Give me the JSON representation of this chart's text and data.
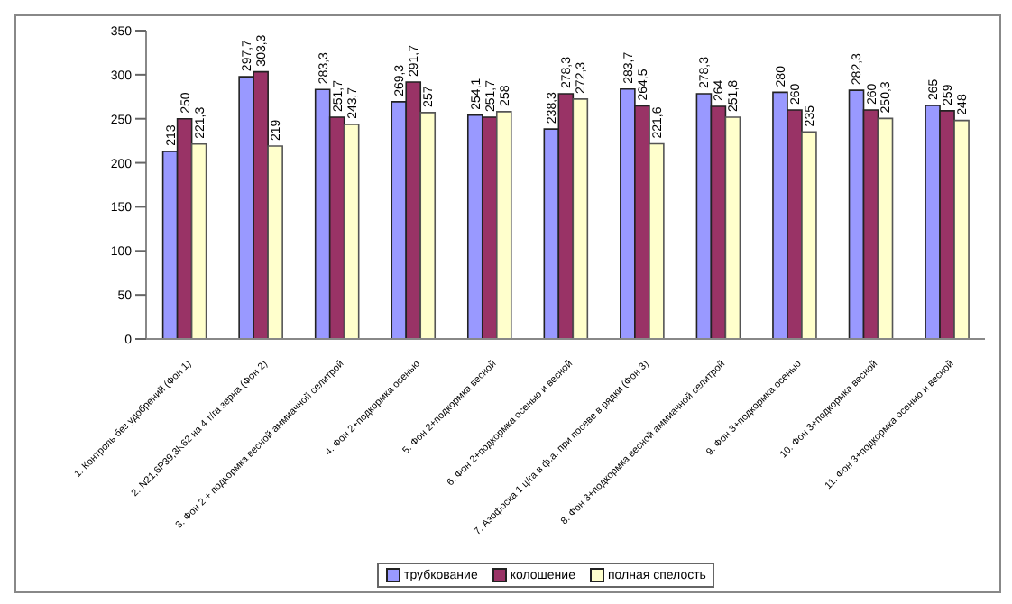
{
  "chart_data": {
    "type": "bar",
    "categories": [
      "1. Контроль без удобрений (Фон 1)",
      "2. N21,6P39,3K62 на 4 т/га зерна (Фон 2)",
      "3. Фон 2 + подкормка весной аммиачной селитрой",
      "4. Фон 2+подкормка осенью",
      "5. Фон 2+подкормка весной",
      "6. Фон 2+подкормка осенью и весной",
      "7. Азофоска 1 ц/га в ф.а. при посеве в рядки (Фон 3)",
      "8. Фон 3+подкормка  весной аммиачной селитрой",
      "9. Фон 3+подкормка осенью",
      "10. Фон 3+подкормка весной",
      "11. Фон 3+подкормка осенью и весной"
    ],
    "series": [
      {
        "name": "трубкование",
        "color": "#9999ff",
        "values": [
          213,
          297.7,
          283.3,
          269.3,
          254.1,
          238.3,
          283.7,
          278.3,
          280,
          282.3,
          265
        ],
        "value_labels": [
          "213",
          "297,7",
          "283,3",
          "269,3",
          "254,1",
          "238,3",
          "283,7",
          "278,3",
          "280",
          "282,3",
          "265"
        ]
      },
      {
        "name": "колошение",
        "color": "#993366",
        "values": [
          250,
          303.3,
          251.7,
          291.7,
          251.7,
          278.3,
          264.5,
          264,
          260,
          260,
          259
        ],
        "value_labels": [
          "250",
          "303,3",
          "251,7",
          "291,7",
          "251,7",
          "278,3",
          "264,5",
          "264",
          "260",
          "260",
          "259"
        ]
      },
      {
        "name": "полная спелость",
        "color": "#ffffcc",
        "values": [
          221.3,
          219,
          243.7,
          257,
          258,
          272.3,
          221.6,
          251.8,
          235,
          250.3,
          248
        ],
        "value_labels": [
          "221,3",
          "219",
          "243,7",
          "257",
          "258",
          "272,3",
          "221,6",
          "251,8",
          "235",
          "250,3",
          "248"
        ]
      }
    ],
    "ylim": [
      0,
      350
    ],
    "yticks": [
      0,
      50,
      100,
      150,
      200,
      250,
      300,
      350
    ],
    "grid": false,
    "legend": "bottom"
  }
}
